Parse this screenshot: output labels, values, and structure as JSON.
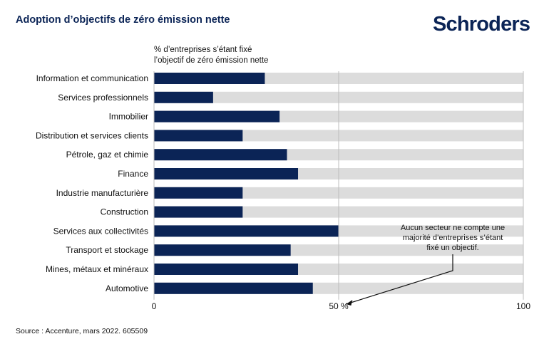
{
  "header": {
    "title": "Adoption d’objectifs de zéro émission nette",
    "logo": "Schroders"
  },
  "footer": {
    "source": "Source : Accenture, mars 2022. 605509"
  },
  "colors": {
    "bar": "#0b2456",
    "track": "#dcdcdc",
    "text": "#111111"
  },
  "chart_data": {
    "type": "bar",
    "orientation": "horizontal",
    "title": "Adoption d’objectifs de zéro émission nette",
    "subtitle": "% d’entreprises s’étant fixé l’objectif de zéro émission nette",
    "subtitle_lines": [
      "% d’entreprises s’étant fixé",
      "l’objectif de zéro émission nette"
    ],
    "categories": [
      "Information et communication",
      "Services professionnels",
      "Immobilier",
      "Distribution et services clients",
      "Pétrole, gaz et chimie",
      "Finance",
      "Industrie manufacturière",
      "Construction",
      "Services aux collectivités",
      "Transport et stockage",
      "Mines, métaux et minéraux",
      "Automotive"
    ],
    "values": [
      30,
      16,
      34,
      24,
      36,
      39,
      24,
      24,
      50,
      37,
      39,
      43
    ],
    "xlim": [
      0,
      100
    ],
    "xticks": [
      {
        "value": 0,
        "label": "0"
      },
      {
        "value": 50,
        "label": "50 %"
      },
      {
        "value": 100,
        "label": "100"
      }
    ],
    "grid": false,
    "background_track": true,
    "annotation": {
      "lines": [
        "Aucun secteur ne compte une",
        "majorité d’entreprises s’étant",
        "fixé un objectif."
      ],
      "points_to_value": 52
    }
  }
}
